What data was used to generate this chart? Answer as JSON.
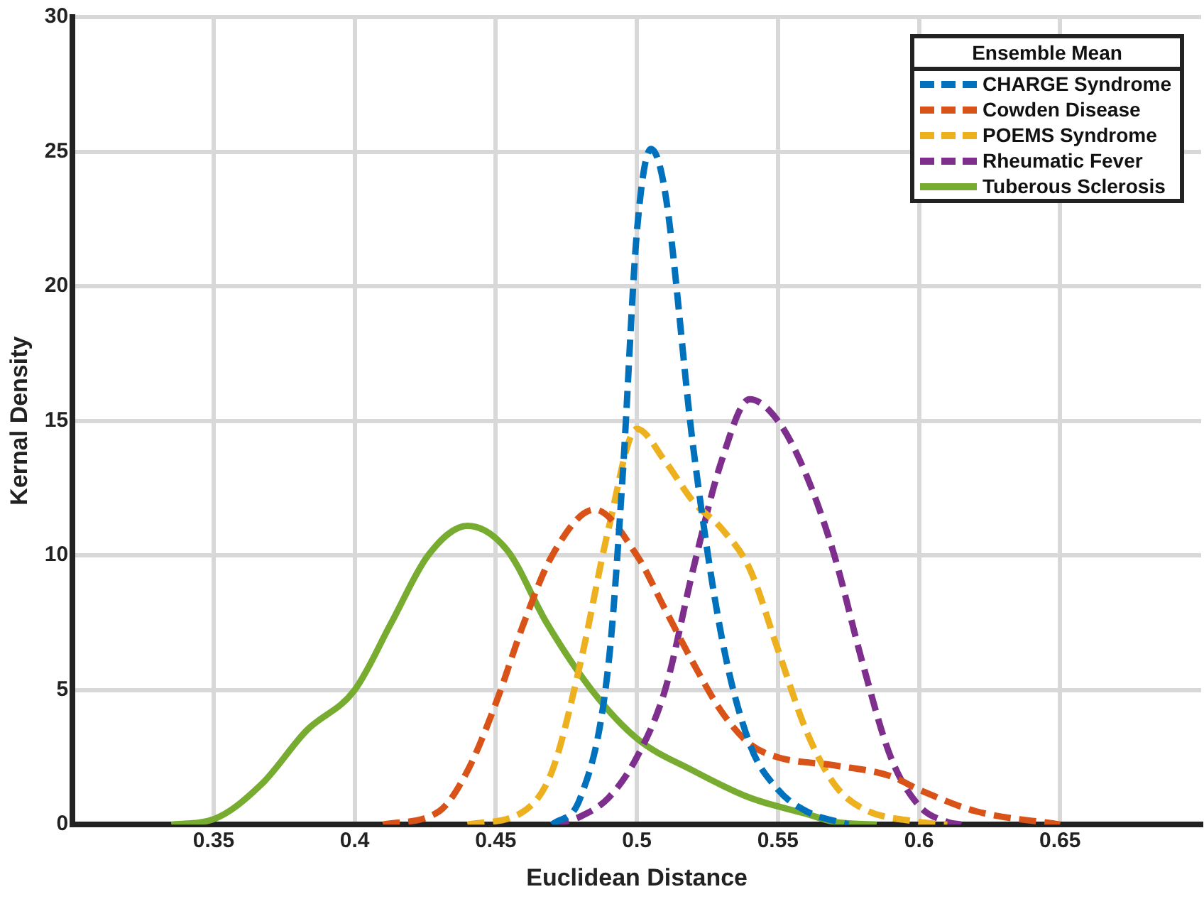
{
  "chart_data": {
    "type": "line",
    "xlabel": "Euclidean Distance",
    "ylabel": "Kernal Density",
    "legend_title": "Ensemble Mean",
    "legend": "top right",
    "grid": true,
    "marker": "none",
    "xlim": [
      0.3,
      0.7
    ],
    "xticks": [
      0.35,
      0.4,
      0.45,
      0.5,
      0.55,
      0.6,
      0.65
    ],
    "ylim": [
      0,
      30
    ],
    "yticks": [
      0,
      5,
      10,
      15,
      20,
      25,
      30
    ],
    "series": [
      {
        "name": "CHARGE Syndrome",
        "color": "#0072bd",
        "line_style": "dashed",
        "x": [
          0.47,
          0.48,
          0.49,
          0.495,
          0.5,
          0.505,
          0.51,
          0.52,
          0.53,
          0.54,
          0.55,
          0.56,
          0.575
        ],
        "values": [
          0,
          1,
          6,
          13,
          22,
          25.1,
          23.5,
          14,
          7,
          3,
          1.3,
          0.5,
          0
        ]
      },
      {
        "name": "Cowden Disease",
        "color": "#d95319",
        "line_style": "dashed",
        "x": [
          0.41,
          0.43,
          0.44,
          0.45,
          0.46,
          0.47,
          0.485,
          0.5,
          0.51,
          0.52,
          0.53,
          0.54,
          0.55,
          0.57,
          0.59,
          0.6,
          0.62,
          0.65
        ],
        "values": [
          0,
          0.5,
          2,
          4.5,
          7.5,
          10,
          11.7,
          10,
          8,
          6,
          4.2,
          3,
          2.5,
          2.2,
          1.8,
          1.3,
          0.5,
          0
        ]
      },
      {
        "name": "POEMS Syndrome",
        "color": "#edb120",
        "line_style": "dashed",
        "x": [
          0.44,
          0.46,
          0.47,
          0.48,
          0.49,
          0.5,
          0.51,
          0.52,
          0.53,
          0.54,
          0.55,
          0.56,
          0.57,
          0.58,
          0.6,
          0.61
        ],
        "values": [
          0,
          0.5,
          2,
          6,
          11,
          14.7,
          13.5,
          12,
          11,
          9.5,
          6.5,
          3.5,
          1.5,
          0.6,
          0.1,
          0
        ]
      },
      {
        "name": "Rheumatic Fever",
        "color": "#7e2f8e",
        "line_style": "dashed",
        "x": [
          0.47,
          0.48,
          0.49,
          0.5,
          0.51,
          0.52,
          0.53,
          0.54,
          0.55,
          0.56,
          0.57,
          0.58,
          0.59,
          0.6,
          0.61,
          0.615
        ],
        "values": [
          0,
          0.3,
          1,
          2.5,
          5,
          9.5,
          13.5,
          15.8,
          15,
          13,
          10,
          6,
          2.5,
          0.7,
          0.1,
          0
        ]
      },
      {
        "name": "Tuberous Sclerosis",
        "color": "#77ac30",
        "line_style": "solid",
        "x": [
          0.335,
          0.35,
          0.367,
          0.383,
          0.4,
          0.413,
          0.426,
          0.44,
          0.454,
          0.468,
          0.484,
          0.5,
          0.52,
          0.54,
          0.56,
          0.57,
          0.585
        ],
        "values": [
          0,
          0.2,
          1.5,
          3.5,
          5,
          7.5,
          10,
          11.1,
          10.2,
          7.5,
          5,
          3.2,
          2,
          1,
          0.4,
          0.1,
          0
        ]
      }
    ]
  }
}
